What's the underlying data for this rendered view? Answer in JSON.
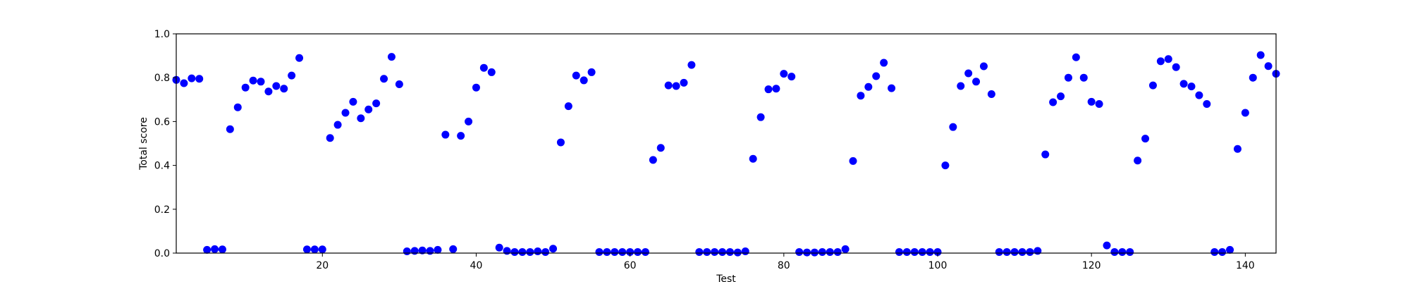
{
  "chart_data": {
    "type": "scatter",
    "title": "",
    "xlabel": "Test",
    "ylabel": "Total score",
    "xlim": [
      1,
      144
    ],
    "ylim": [
      0.0,
      1.0
    ],
    "xticks": [
      20,
      40,
      60,
      80,
      100,
      120,
      140
    ],
    "yticks": [
      0.0,
      0.2,
      0.4,
      0.6,
      0.8,
      1.0
    ],
    "ytick_labels": [
      "0.0",
      "0.2",
      "0.4",
      "0.6",
      "0.8",
      "1.0"
    ],
    "grid": false,
    "marker_color": "#0000ff",
    "series": [
      {
        "x": [
          1,
          2,
          3,
          4,
          5,
          6,
          7,
          8,
          9,
          10,
          11,
          12,
          13,
          14,
          15,
          16,
          17,
          18,
          19,
          20,
          21,
          22,
          23,
          24,
          25,
          26,
          27,
          28,
          29,
          30,
          31,
          32,
          33,
          34,
          35,
          36,
          37,
          38,
          39,
          40,
          41,
          42,
          43,
          44,
          45,
          46,
          47,
          48,
          49,
          50,
          51,
          52,
          53,
          54,
          55,
          56,
          57,
          58,
          59,
          60,
          61,
          62,
          63,
          64,
          65,
          66,
          67,
          68,
          69,
          70,
          71,
          72,
          73,
          74,
          75,
          76,
          77,
          78,
          79,
          80,
          81,
          82,
          83,
          84,
          85,
          86,
          87,
          88,
          89,
          90,
          91,
          92,
          93,
          94,
          95,
          96,
          97,
          98,
          99,
          100,
          101,
          102,
          103,
          104,
          105,
          106,
          107,
          108,
          109,
          110,
          111,
          112,
          113,
          114,
          115,
          116,
          117,
          118,
          119,
          120,
          121,
          122,
          123,
          124,
          125,
          126,
          127,
          128,
          129,
          130,
          131,
          132,
          133,
          134,
          135,
          136,
          137,
          138,
          139,
          140,
          141,
          142,
          143,
          144
        ],
        "y": [
          0.79,
          0.775,
          0.797,
          0.795,
          0.015,
          0.018,
          0.017,
          0.565,
          0.665,
          0.755,
          0.787,
          0.782,
          0.737,
          0.762,
          0.75,
          0.81,
          0.89,
          0.017,
          0.017,
          0.017,
          0.525,
          0.585,
          0.64,
          0.69,
          0.615,
          0.655,
          0.683,
          0.795,
          0.895,
          0.77,
          0.008,
          0.01,
          0.012,
          0.01,
          0.015,
          0.54,
          0.018,
          0.535,
          0.6,
          0.755,
          0.845,
          0.825,
          0.025,
          0.01,
          0.005,
          0.005,
          0.005,
          0.008,
          0.005,
          0.02,
          0.505,
          0.67,
          0.81,
          0.788,
          0.825,
          0.005,
          0.005,
          0.005,
          0.005,
          0.005,
          0.005,
          0.005,
          0.425,
          0.48,
          0.765,
          0.762,
          0.777,
          0.858,
          0.005,
          0.005,
          0.005,
          0.005,
          0.005,
          0.003,
          0.008,
          0.43,
          0.62,
          0.747,
          0.75,
          0.818,
          0.805,
          0.005,
          0.003,
          0.003,
          0.005,
          0.005,
          0.005,
          0.018,
          0.42,
          0.718,
          0.758,
          0.807,
          0.868,
          0.752,
          0.005,
          0.005,
          0.005,
          0.005,
          0.005,
          0.005,
          0.4,
          0.575,
          0.762,
          0.82,
          0.782,
          0.852,
          0.725,
          0.005,
          0.005,
          0.005,
          0.005,
          0.005,
          0.01,
          0.45,
          0.688,
          0.715,
          0.8,
          0.893,
          0.8,
          0.69,
          0.68,
          0.035,
          0.005,
          0.005,
          0.005,
          0.422,
          0.522,
          0.765,
          0.875,
          0.885,
          0.848,
          0.772,
          0.76,
          0.72,
          0.68,
          0.005,
          0.005,
          0.015,
          0.475,
          0.64,
          0.8,
          0.903,
          0.853,
          0.818
        ]
      }
    ]
  }
}
